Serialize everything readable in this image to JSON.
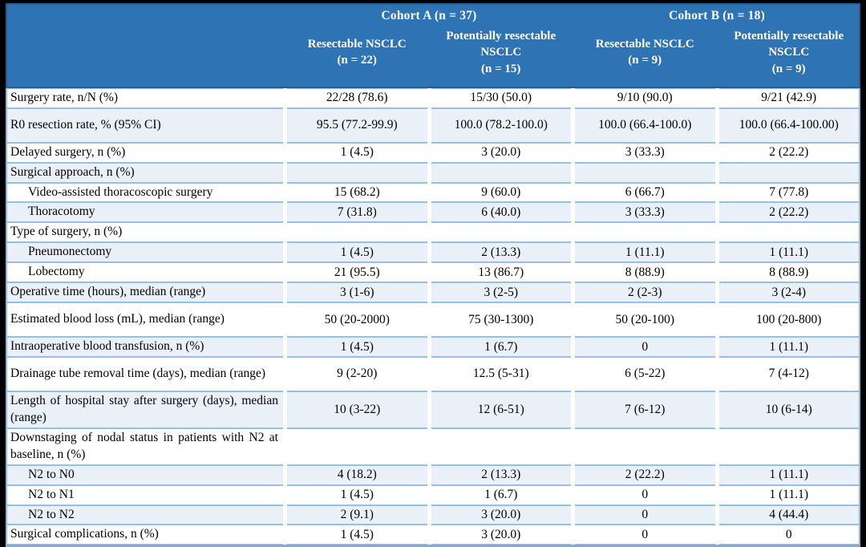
{
  "table": {
    "cohorts": [
      {
        "label": "Cohort A (n = 37)"
      },
      {
        "label": "Cohort B (n = 18)"
      }
    ],
    "columns": [
      {
        "name": "Resectable NSCLC",
        "n": "(n = 22)"
      },
      {
        "name": "Potentially resectable NSCLC",
        "n": "(n = 15)"
      },
      {
        "name": "Resectable NSCLC",
        "n": "(n = 9)"
      },
      {
        "name": "Potentially resectable NSCLC",
        "n": "(n = 9)"
      }
    ],
    "rows": [
      {
        "label": "Surgery rate, n/N (%)",
        "indent": false,
        "shaded": false,
        "tall": false,
        "values": [
          "22/28 (78.6)",
          "15/30 (50.0)",
          "9/10 (90.0)",
          "9/21 (42.9)"
        ]
      },
      {
        "label": "R0 resection rate, % (95% CI)",
        "indent": false,
        "shaded": true,
        "tall": true,
        "values": [
          "95.5 (77.2-99.9)",
          "100.0 (78.2-100.0)",
          "100.0 (66.4-100.0)",
          "100.0 (66.4-100.00)"
        ]
      },
      {
        "label": "Delayed surgery, n (%)",
        "indent": false,
        "shaded": false,
        "tall": false,
        "values": [
          "1 (4.5)",
          "3 (20.0)",
          "3 (33.3)",
          "2 (22.2)"
        ]
      },
      {
        "label": "Surgical approach, n (%)",
        "indent": false,
        "shaded": true,
        "tall": false,
        "values": [
          "",
          "",
          "",
          ""
        ]
      },
      {
        "label": "Video-assisted thoracoscopic surgery",
        "indent": true,
        "shaded": false,
        "tall": false,
        "values": [
          "15 (68.2)",
          "9 (60.0)",
          "6 (66.7)",
          "7 (77.8)"
        ]
      },
      {
        "label": "Thoracotomy",
        "indent": true,
        "shaded": true,
        "tall": false,
        "values": [
          "7 (31.8)",
          "6 (40.0)",
          "3 (33.3)",
          "2 (22.2)"
        ]
      },
      {
        "label": "Type of surgery, n (%)",
        "indent": false,
        "shaded": false,
        "tall": false,
        "values": [
          "",
          "",
          "",
          ""
        ]
      },
      {
        "label": "Pneumonectomy",
        "indent": true,
        "shaded": true,
        "tall": false,
        "values": [
          "1 (4.5)",
          "2 (13.3)",
          "1 (11.1)",
          "1 (11.1)"
        ]
      },
      {
        "label": "Lobectomy",
        "indent": true,
        "shaded": false,
        "tall": false,
        "values": [
          "21 (95.5)",
          "13 (86.7)",
          "8 (88.9)",
          "8 (88.9)"
        ]
      },
      {
        "label": "Operative time (hours), median (range)",
        "indent": false,
        "shaded": true,
        "tall": false,
        "values": [
          "3 (1-6)",
          "3 (2-5)",
          "2 (2-3)",
          "3 (2-4)"
        ]
      },
      {
        "label": "Estimated blood loss (mL), median (range)",
        "indent": false,
        "shaded": false,
        "tall": true,
        "values": [
          "50 (20-2000)",
          "75 (30-1300)",
          "50 (20-100)",
          "100 (20-800)"
        ]
      },
      {
        "label": "Intraoperative blood transfusion, n (%)",
        "indent": false,
        "shaded": true,
        "tall": false,
        "values": [
          "1 (4.5)",
          "1 (6.7)",
          "0",
          "1 (11.1)"
        ]
      },
      {
        "label": "Drainage tube removal time (days), median (range)",
        "indent": false,
        "shaded": false,
        "tall": true,
        "values": [
          "9 (2-20)",
          "12.5 (5-31)",
          "6 (5-22)",
          "7 (4-12)"
        ]
      },
      {
        "label": "Length of hospital stay after surgery (days), median (range)",
        "indent": false,
        "shaded": true,
        "tall": true,
        "values": [
          "10 (3-22)",
          "12 (6-51)",
          "7 (6-12)",
          "10 (6-14)"
        ]
      },
      {
        "label": "Downstaging of nodal status in patients with N2 at baseline, n (%)",
        "indent": false,
        "shaded": false,
        "tall": true,
        "values": [
          "",
          "",
          "",
          ""
        ]
      },
      {
        "label": "N2 to N0",
        "indent": true,
        "shaded": true,
        "tall": false,
        "values": [
          "4 (18.2)",
          "2 (13.3)",
          "2 (22.2)",
          "1 (11.1)"
        ]
      },
      {
        "label": "N2 to N1",
        "indent": true,
        "shaded": false,
        "tall": false,
        "values": [
          "1 (4.5)",
          "1 (6.7)",
          "0",
          "1 (11.1)"
        ]
      },
      {
        "label": "N2 to N2",
        "indent": true,
        "shaded": true,
        "tall": false,
        "values": [
          "2 (9.1)",
          "3 (20.0)",
          "0",
          "4 (44.4)"
        ]
      },
      {
        "label": "Surgical complications, n (%)",
        "indent": false,
        "shaded": false,
        "tall": false,
        "values": [
          "1 (4.5)",
          "3 (20.0)",
          "0",
          "0"
        ]
      }
    ]
  },
  "colors": {
    "header_bg": "#2E74B5",
    "header_border": "#255E91",
    "header_text": "#FFFFFF",
    "row_border": "#97BEE4",
    "shaded_row_bg": "#EAF0F8",
    "frame_bg": "#000000"
  }
}
